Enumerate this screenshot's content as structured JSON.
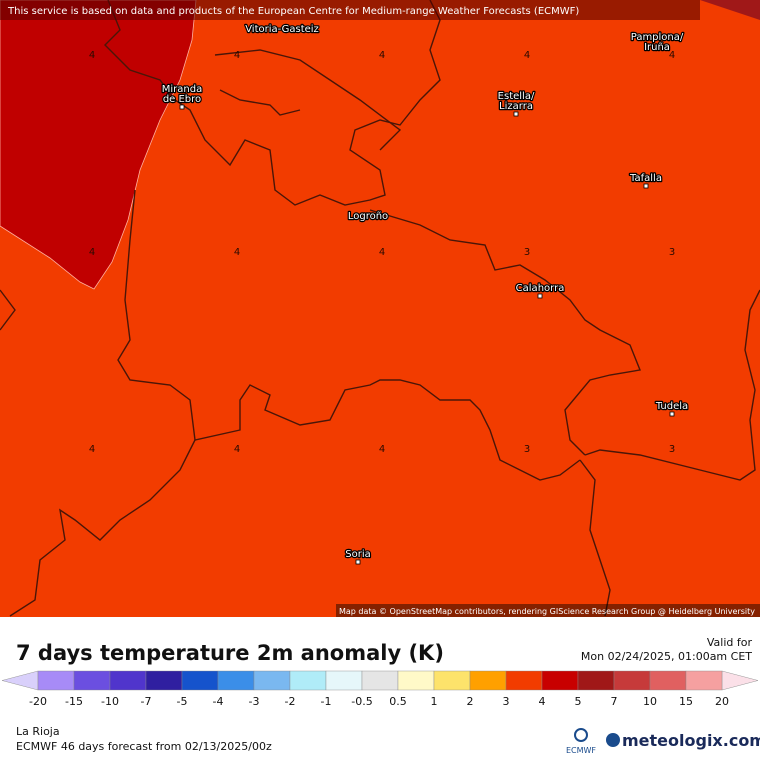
{
  "header": {
    "attribution": "This service is based on data and products of the European Centre for Medium-range Weather Forecasts (ECMWF)"
  },
  "map": {
    "credit": "Map data © OpenStreetMap contributors, rendering GIScience Research Group @ Heidelberg University",
    "cities": [
      {
        "label": [
          "Vitoria-Gasteiz"
        ]
      },
      {
        "label": [
          "Pamplona/",
          "Iruña"
        ]
      },
      {
        "label": [
          "Miranda",
          "de Ebro"
        ]
      },
      {
        "label": [
          "Estella/",
          "Lizarra"
        ]
      },
      {
        "label": [
          "Tafalla"
        ]
      },
      {
        "label": [
          "Logroño"
        ]
      },
      {
        "label": [
          "Calahorra"
        ]
      },
      {
        "label": [
          "Tudela"
        ]
      },
      {
        "label": [
          "Soria"
        ]
      }
    ],
    "grid_values": [
      [
        4,
        4,
        4,
        4,
        4
      ],
      [
        4,
        4,
        4,
        3,
        3
      ],
      [
        4,
        4,
        4,
        3,
        3
      ]
    ]
  },
  "footer": {
    "title": "7 days temperature 2m anomaly (K)",
    "valid_label": "Valid for",
    "valid_time": "Mon 02/24/2025, 01:00am CET",
    "region": "La Rioja",
    "forecast": "ECMWF 46 days forecast from  02/13/2025/00z",
    "ecmwf_logo": "ECMWF",
    "brand": "meteologix.com"
  },
  "legend": {
    "ticks": [
      -20,
      -15,
      -10,
      -7,
      -5,
      -4,
      -3,
      -2,
      -1,
      -0.5,
      0.5,
      1,
      2,
      3,
      4,
      5,
      7,
      10,
      15,
      20
    ],
    "colors": [
      "#a78bf7",
      "#6b4fe0",
      "#5035cc",
      "#2f1fa0",
      "#1553cc",
      "#3b8ee8",
      "#7ab8f0",
      "#b0ecf8",
      "#e6f7fa",
      "#e5e5e5",
      "#fff9c8",
      "#fde36b",
      "#ffa000",
      "#f23c00",
      "#c80000",
      "#a01818",
      "#c63a3a",
      "#e06060",
      "#f5a0a0"
    ],
    "under_color": "#d9d0fb",
    "over_color": "#fbe0e8"
  }
}
